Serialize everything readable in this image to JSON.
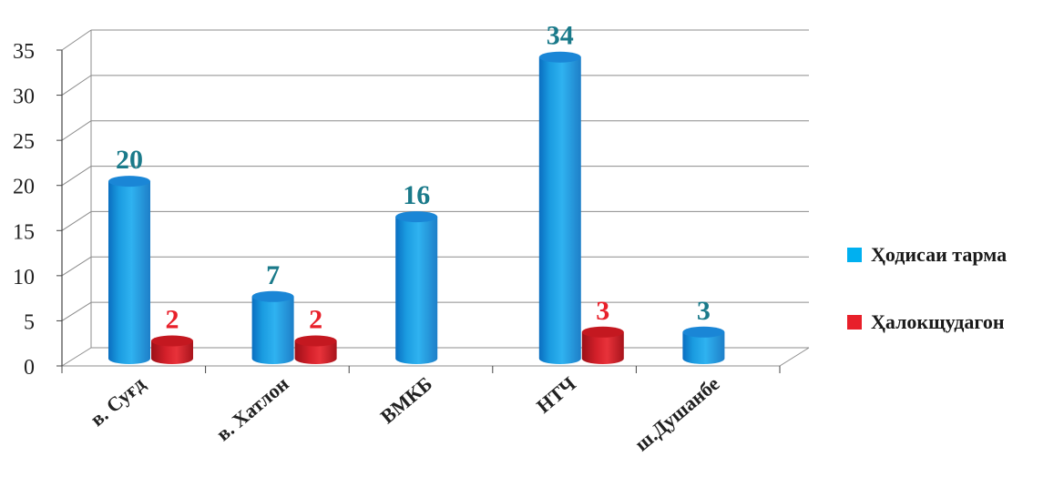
{
  "chart_data": {
    "type": "bar",
    "categories": [
      "в. Суғд",
      "в. Хатлон",
      "ВМКБ",
      "НТЧ",
      "ш.Душанбе"
    ],
    "series": [
      {
        "name": "Ҳодисаи тарма",
        "values": [
          20,
          7,
          16,
          34,
          3
        ],
        "labels": [
          "20",
          "7",
          "16",
          "34",
          "3"
        ],
        "color": "#00b0f0"
      },
      {
        "name": "Ҳалокщудагон",
        "values": [
          2,
          2,
          null,
          3,
          null
        ],
        "labels": [
          "2",
          "2",
          "",
          "3",
          ""
        ],
        "color": "#e8202a"
      }
    ],
    "y_ticks": [
      "0",
      "5",
      "10",
      "15",
      "20",
      "25",
      "30",
      "35"
    ],
    "ylim": [
      0,
      35
    ],
    "grid": true,
    "legend": "right",
    "label_colors": {
      "series1": "#1a7a8a",
      "series2": "#e8202a"
    }
  }
}
